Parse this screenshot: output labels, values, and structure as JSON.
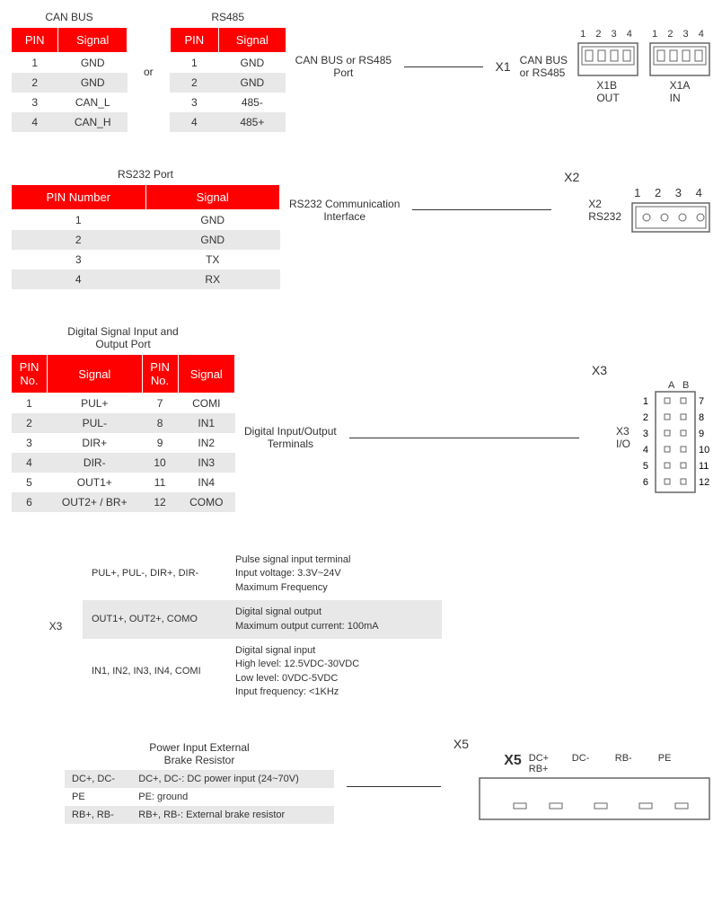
{
  "colors": {
    "header_bg": "#ff0000",
    "header_fg": "#ffffff",
    "row_alt": "#e8e8e8"
  },
  "section1": {
    "canbus": {
      "title": "CAN BUS",
      "headers": [
        "PIN",
        "Signal"
      ],
      "rows": [
        [
          "1",
          "GND"
        ],
        [
          "2",
          "GND"
        ],
        [
          "3",
          "CAN_L"
        ],
        [
          "4",
          "CAN_H"
        ]
      ]
    },
    "rs485": {
      "title": "RS485",
      "headers": [
        "PIN",
        "Signal"
      ],
      "rows": [
        [
          "1",
          "GND"
        ],
        [
          "2",
          "GND"
        ],
        [
          "3",
          "485-"
        ],
        [
          "4",
          "485+"
        ]
      ]
    },
    "or": "or",
    "diag": {
      "left_text": "CAN BUS or RS485\nPort",
      "mid_top": "X1",
      "mid_right": "CAN BUS\nor RS485",
      "conn_b": {
        "pins": "1 2 3 4",
        "label": "X1B\nOUT"
      },
      "conn_a": {
        "pins": "1 2 3 4",
        "label": "X1A\nIN"
      }
    }
  },
  "section2": {
    "title": "RS232 Port",
    "headers": [
      "PIN Number",
      "Signal"
    ],
    "rows": [
      [
        "1",
        "GND"
      ],
      [
        "2",
        "GND"
      ],
      [
        "3",
        "TX"
      ],
      [
        "4",
        "RX"
      ]
    ],
    "diag": {
      "left_text": "RS232 Communication\nInterface",
      "mid_top": "X2",
      "mid_right": "X2\nRS232",
      "conn": {
        "pins": "1  2  3  4"
      }
    }
  },
  "section3": {
    "title": "Digital Signal Input and\nOutput Port",
    "headers": [
      "PIN No.",
      "Signal",
      "PIN No.",
      "Signal"
    ],
    "rows": [
      [
        "1",
        "PUL+",
        "7",
        "COMI"
      ],
      [
        "2",
        "PUL-",
        "8",
        "IN1"
      ],
      [
        "3",
        "DIR+",
        "9",
        "IN2"
      ],
      [
        "4",
        "DIR-",
        "10",
        "IN3"
      ],
      [
        "5",
        "OUT1+",
        "11",
        "IN4"
      ],
      [
        "6",
        "OUT2+ / BR+",
        "12",
        "COMO"
      ]
    ],
    "diag": {
      "left_text": "Digital Input/Output\nTerminals",
      "mid_top": "X3",
      "mid_right": "X3\nI/O",
      "conn_labels_top": "A   B",
      "conn_pins": [
        [
          1,
          7
        ],
        [
          2,
          8
        ],
        [
          3,
          9
        ],
        [
          4,
          10
        ],
        [
          5,
          11
        ],
        [
          6,
          12
        ]
      ]
    }
  },
  "section3b": {
    "label": "X3",
    "rows": [
      {
        "sig": "PUL+, PUL-, DIR+, DIR-",
        "desc": "Pulse signal input terminal\nInput voltage: 3.3V~24V\nMaximum Frequency"
      },
      {
        "sig": "OUT1+, OUT2+, COMO",
        "desc": "Digital signal output\nMaximum output current: 100mA"
      },
      {
        "sig": "IN1, IN2, IN3, IN4, COMI",
        "desc": "Digital signal input\nHigh level: 12.5VDC-30VDC\nLow level: 0VDC-5VDC\nInput frequency: <1KHz"
      }
    ]
  },
  "section4": {
    "title": "Power Input External\nBrake Resistor",
    "rows": [
      [
        "DC+, DC-",
        "DC+, DC-: DC power input (24~70V)"
      ],
      [
        "PE",
        "PE: ground"
      ],
      [
        "RB+, RB-",
        "RB+, RB-: External brake resistor"
      ]
    ],
    "diag": {
      "mid_top": "X5",
      "conn_title": "X5",
      "labels": [
        "DC+\nRB+",
        "DC-",
        "RB-",
        "PE"
      ]
    }
  }
}
